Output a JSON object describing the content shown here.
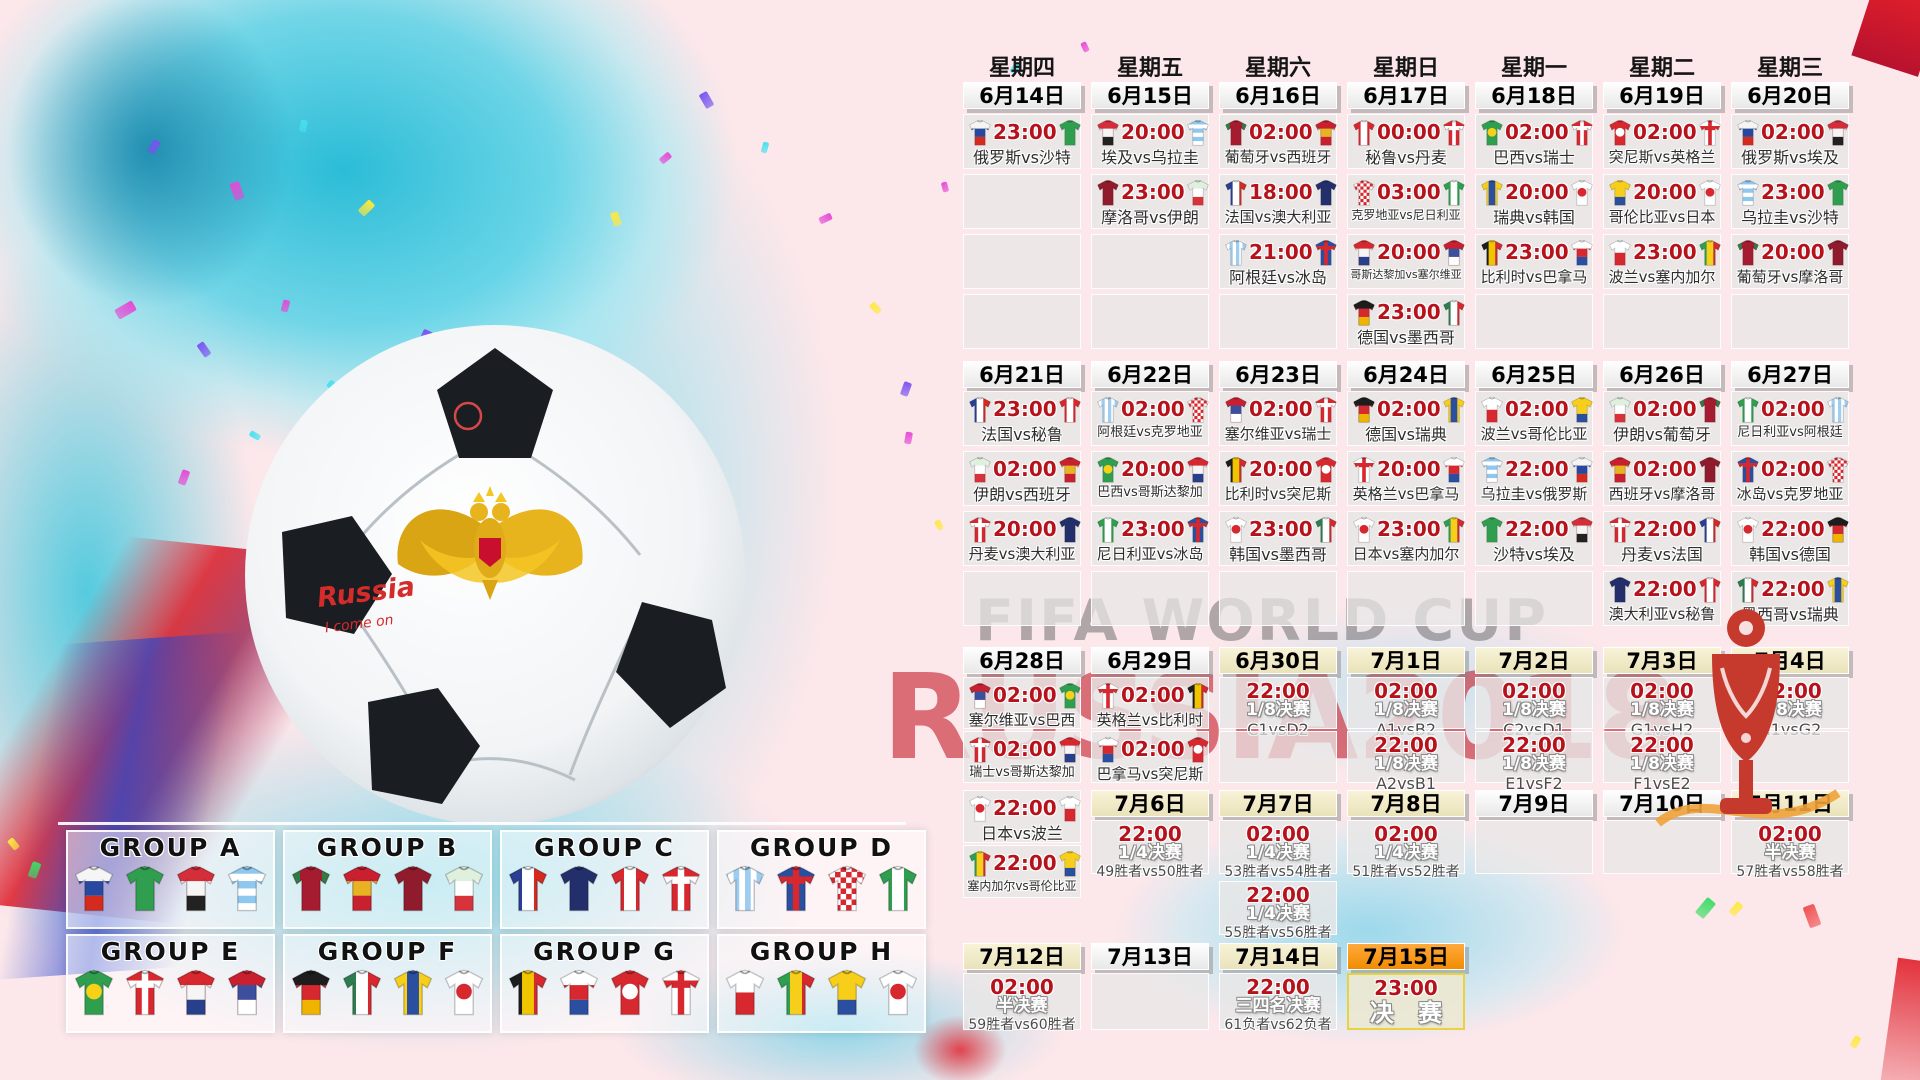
{
  "watermark": {
    "line1": "FIFA WORLD CUP",
    "line2": "RUSSIA2018"
  },
  "ball_text": {
    "line1": "Russia",
    "line2": "I come on"
  },
  "weekdays": [
    "星期四",
    "星期五",
    "星期六",
    "星期日",
    "星期一",
    "星期二",
    "星期三"
  ],
  "colors": {
    "time_red": "#b5121b",
    "date_cream": "#efe8c4",
    "date_orange": "#f18c00",
    "final_border": "#e8d23f",
    "watermark_red": "#c62230",
    "watermark_gray": "#5f5f5f"
  },
  "teams": {
    "russia": {
      "p": "h3",
      "c": [
        "#f5f5f5",
        "#27489e",
        "#d52b1e"
      ]
    },
    "saudi": {
      "p": "plain",
      "c": [
        "#2f9e4f"
      ]
    },
    "egypt": {
      "p": "h3",
      "c": [
        "#d42e3a",
        "#f5f5f5",
        "#222222"
      ]
    },
    "uruguay": {
      "p": "hstripes",
      "c": [
        "#8fc8ee",
        "#ffffff"
      ]
    },
    "morocco": {
      "p": "plain",
      "c": [
        "#8f1b2c"
      ]
    },
    "iran": {
      "p": "h3",
      "c": [
        "#dff0df",
        "#ffffff",
        "#d8323b"
      ]
    },
    "portugal": {
      "p": "sleeves",
      "c": [
        "#a51c30",
        "#2e7d43"
      ]
    },
    "spain": {
      "p": "h3",
      "c": [
        "#c8202f",
        "#e8b322",
        "#c8202f"
      ]
    },
    "france": {
      "p": "v3",
      "c": [
        "#2b3f92",
        "#ffffff",
        "#d52b1e"
      ]
    },
    "australia": {
      "p": "plain",
      "c": [
        "#232f6b"
      ]
    },
    "argentina": {
      "p": "vstripes",
      "c": [
        "#9ecdf0",
        "#ffffff"
      ]
    },
    "iceland": {
      "p": "cross",
      "c": [
        "#2a4fa0",
        "#d7282f"
      ]
    },
    "peru": {
      "p": "v3",
      "c": [
        "#d7282f",
        "#ffffff",
        "#d7282f"
      ]
    },
    "denmark": {
      "p": "cross",
      "c": [
        "#d7282f",
        "#ffffff"
      ]
    },
    "croatia": {
      "p": "check",
      "c": [
        "#d7282f",
        "#ffffff"
      ]
    },
    "nigeria": {
      "p": "v3",
      "c": [
        "#2f9e4f",
        "#ffffff",
        "#2f9e4f"
      ]
    },
    "costarica": {
      "p": "h3",
      "c": [
        "#d7282f",
        "#f5f5f5",
        "#27408b"
      ]
    },
    "serbia": {
      "p": "h3",
      "c": [
        "#c8202f",
        "#3b4f9e",
        "#ffffff"
      ]
    },
    "germany": {
      "p": "h3",
      "c": [
        "#1d1d1d",
        "#d7282f",
        "#f0b400"
      ]
    },
    "mexico": {
      "p": "v3",
      "c": [
        "#2f7d4f",
        "#ffffff",
        "#d7282f"
      ]
    },
    "brazil": {
      "p": "circle",
      "c": [
        "#2f9e4f",
        "#f7d117"
      ]
    },
    "switzerland": {
      "p": "cross",
      "c": [
        "#d7282f",
        "#ffffff"
      ]
    },
    "sweden": {
      "p": "v3",
      "c": [
        "#f7cf1b",
        "#2a4fa0",
        "#f7cf1b"
      ]
    },
    "korea": {
      "p": "circle",
      "c": [
        "#ffffff",
        "#d7282f"
      ]
    },
    "belgium": {
      "p": "v3",
      "c": [
        "#1d1d1d",
        "#f0c500",
        "#d7282f"
      ]
    },
    "panama": {
      "p": "h3",
      "c": [
        "#ffffff",
        "#d7282f",
        "#2a4fa0"
      ]
    },
    "tunisia": {
      "p": "circle",
      "c": [
        "#d7282f",
        "#ffffff"
      ]
    },
    "england": {
      "p": "cross",
      "c": [
        "#ffffff",
        "#d7282f"
      ]
    },
    "colombia": {
      "p": "h3",
      "c": [
        "#f7cf1b",
        "#f7cf1b",
        "#2a4fa0"
      ]
    },
    "japan": {
      "p": "circle",
      "c": [
        "#ffffff",
        "#d7282f"
      ]
    },
    "poland": {
      "p": "h2",
      "c": [
        "#ffffff",
        "#d7282f"
      ]
    },
    "senegal": {
      "p": "v3",
      "c": [
        "#2f9e4f",
        "#f7cf1b",
        "#d7282f"
      ]
    }
  },
  "weeks": [
    {
      "columns": [
        {
          "date": "6月14日",
          "style": "white",
          "cells": [
            {
              "t": "23:00",
              "h": "russia",
              "a": "saudi",
              "n": "俄罗斯vs沙特"
            },
            "E",
            "E",
            "E"
          ]
        },
        {
          "date": "6月15日",
          "style": "white",
          "cells": [
            {
              "t": "20:00",
              "h": "egypt",
              "a": "uruguay",
              "n": "埃及vs乌拉圭"
            },
            {
              "t": "23:00",
              "h": "morocco",
              "a": "iran",
              "n": "摩洛哥vs伊朗"
            },
            "E",
            "E"
          ]
        },
        {
          "date": "6月16日",
          "style": "white",
          "cells": [
            {
              "t": "02:00",
              "h": "portugal",
              "a": "spain",
              "n": "葡萄牙vs西班牙"
            },
            {
              "t": "18:00",
              "h": "france",
              "a": "australia",
              "n": "法国vs澳大利亚"
            },
            {
              "t": "21:00",
              "h": "argentina",
              "a": "iceland",
              "n": "阿根廷vs冰岛"
            },
            "E"
          ]
        },
        {
          "date": "6月17日",
          "style": "white",
          "cells": [
            {
              "t": "00:00",
              "h": "peru",
              "a": "denmark",
              "n": "秘鲁vs丹麦"
            },
            {
              "t": "03:00",
              "h": "croatia",
              "a": "nigeria",
              "n": "克罗地亚vs尼日利亚"
            },
            {
              "t": "20:00",
              "h": "costarica",
              "a": "serbia",
              "n": "哥斯达黎加vs塞尔维亚"
            },
            {
              "t": "23:00",
              "h": "germany",
              "a": "mexico",
              "n": "德国vs墨西哥"
            }
          ]
        },
        {
          "date": "6月18日",
          "style": "white",
          "cells": [
            {
              "t": "02:00",
              "h": "brazil",
              "a": "switzerland",
              "n": "巴西vs瑞士"
            },
            {
              "t": "20:00",
              "h": "sweden",
              "a": "korea",
              "n": "瑞典vs韩国"
            },
            {
              "t": "23:00",
              "h": "belgium",
              "a": "panama",
              "n": "比利时vs巴拿马"
            },
            "E"
          ]
        },
        {
          "date": "6月19日",
          "style": "white",
          "cells": [
            {
              "t": "02:00",
              "h": "tunisia",
              "a": "england",
              "n": "突尼斯vs英格兰"
            },
            {
              "t": "20:00",
              "h": "colombia",
              "a": "japan",
              "n": "哥伦比亚vs日本"
            },
            {
              "t": "23:00",
              "h": "poland",
              "a": "senegal",
              "n": "波兰vs塞内加尔"
            },
            "E"
          ]
        },
        {
          "date": "6月20日",
          "style": "white",
          "cells": [
            {
              "t": "02:00",
              "h": "russia",
              "a": "egypt",
              "n": "俄罗斯vs埃及"
            },
            {
              "t": "23:00",
              "h": "uruguay",
              "a": "saudi",
              "n": "乌拉圭vs沙特"
            },
            {
              "t": "20:00",
              "h": "portugal",
              "a": "morocco",
              "n": "葡萄牙vs摩洛哥"
            },
            "E"
          ]
        }
      ]
    },
    {
      "columns": [
        {
          "date": "6月21日",
          "style": "white",
          "cells": [
            {
              "t": "23:00",
              "h": "france",
              "a": "peru",
              "n": "法国vs秘鲁"
            },
            {
              "t": "02:00",
              "h": "iran",
              "a": "spain",
              "n": "伊朗vs西班牙"
            },
            {
              "t": "20:00",
              "h": "denmark",
              "a": "australia",
              "n": "丹麦vs澳大利亚"
            },
            "E"
          ]
        },
        {
          "date": "6月22日",
          "style": "white",
          "cells": [
            {
              "t": "02:00",
              "h": "argentina",
              "a": "croatia",
              "n": "阿根廷vs克罗地亚"
            },
            {
              "t": "20:00",
              "h": "brazil",
              "a": "costarica",
              "n": "巴西vs哥斯达黎加"
            },
            {
              "t": "23:00",
              "h": "nigeria",
              "a": "iceland",
              "n": "尼日利亚vs冰岛"
            },
            "E"
          ]
        },
        {
          "date": "6月23日",
          "style": "white",
          "cells": [
            {
              "t": "02:00",
              "h": "serbia",
              "a": "switzerland",
              "n": "塞尔维亚vs瑞士"
            },
            {
              "t": "20:00",
              "h": "belgium",
              "a": "tunisia",
              "n": "比利时vs突尼斯"
            },
            {
              "t": "23:00",
              "h": "korea",
              "a": "mexico",
              "n": "韩国vs墨西哥"
            },
            "E"
          ]
        },
        {
          "date": "6月24日",
          "style": "white",
          "cells": [
            {
              "t": "02:00",
              "h": "germany",
              "a": "sweden",
              "n": "德国vs瑞典"
            },
            {
              "t": "20:00",
              "h": "england",
              "a": "panama",
              "n": "英格兰vs巴拿马"
            },
            {
              "t": "23:00",
              "h": "japan",
              "a": "senegal",
              "n": "日本vs塞内加尔"
            },
            "E"
          ]
        },
        {
          "date": "6月25日",
          "style": "white",
          "cells": [
            {
              "t": "02:00",
              "h": "poland",
              "a": "colombia",
              "n": "波兰vs哥伦比亚"
            },
            {
              "t": "22:00",
              "h": "uruguay",
              "a": "russia",
              "n": "乌拉圭vs俄罗斯"
            },
            {
              "t": "22:00",
              "h": "saudi",
              "a": "egypt",
              "n": "沙特vs埃及"
            },
            "E"
          ]
        },
        {
          "date": "6月26日",
          "style": "white",
          "cells": [
            {
              "t": "02:00",
              "h": "iran",
              "a": "portugal",
              "n": "伊朗vs葡萄牙"
            },
            {
              "t": "02:00",
              "h": "spain",
              "a": "morocco",
              "n": "西班牙vs摩洛哥"
            },
            {
              "t": "22:00",
              "h": "denmark",
              "a": "france",
              "n": "丹麦vs法国"
            },
            {
              "t": "22:00",
              "h": "australia",
              "a": "peru",
              "n": "澳大利亚vs秘鲁"
            }
          ]
        },
        {
          "date": "6月27日",
          "style": "white",
          "cells": [
            {
              "t": "02:00",
              "h": "nigeria",
              "a": "argentina",
              "n": "尼日利亚vs阿根廷"
            },
            {
              "t": "02:00",
              "h": "iceland",
              "a": "croatia",
              "n": "冰岛vs克罗地亚"
            },
            {
              "t": "22:00",
              "h": "korea",
              "a": "germany",
              "n": "韩国vs德国"
            },
            {
              "t": "22:00",
              "h": "mexico",
              "a": "sweden",
              "n": "墨西哥vs瑞典"
            }
          ]
        }
      ]
    },
    {
      "columns": [
        {
          "date": "6月28日",
          "style": "white",
          "cells": [
            {
              "t": "02:00",
              "h": "serbia",
              "a": "brazil",
              "n": "塞尔维亚vs巴西"
            },
            {
              "t": "02:00",
              "h": "switzerland",
              "a": "costarica",
              "n": "瑞士vs哥斯达黎加"
            }
          ]
        },
        {
          "date": "6月29日",
          "style": "white",
          "cells": [
            {
              "t": "02:00",
              "h": "england",
              "a": "belgium",
              "n": "英格兰vs比利时"
            },
            {
              "t": "02:00",
              "h": "panama",
              "a": "tunisia",
              "n": "巴拿马vs突尼斯"
            }
          ]
        },
        {
          "date": "6月30日",
          "style": "cream",
          "cells": [
            {
              "t": "22:00",
              "r": "1/8决赛",
              "c": "C1vsD2"
            },
            "E"
          ]
        },
        {
          "date": "7月1日",
          "style": "cream",
          "cells": [
            {
              "t": "02:00",
              "r": "1/8决赛",
              "c": "A1vsB2"
            },
            {
              "t": "22:00",
              "r": "1/8决赛",
              "c": "A2vsB1"
            }
          ]
        },
        {
          "date": "7月2日",
          "style": "cream",
          "cells": [
            {
              "t": "02:00",
              "r": "1/8决赛",
              "c": "C2vsD1"
            },
            {
              "t": "22:00",
              "r": "1/8决赛",
              "c": "E1vsF2"
            }
          ]
        },
        {
          "date": "7月3日",
          "style": "cream",
          "cells": [
            {
              "t": "02:00",
              "r": "1/8决赛",
              "c": "G1vsH2"
            },
            {
              "t": "22:00",
              "r": "1/8决赛",
              "c": "F1vsE2"
            }
          ]
        },
        {
          "date": "7月4日",
          "style": "cream",
          "cells": [
            {
              "t": "02:00",
              "r": "1/8决赛",
              "c": "H1vsG2"
            },
            "E"
          ]
        }
      ]
    },
    {
      "columns": [
        {
          "date": null,
          "offset": true,
          "cells": [
            {
              "t": "22:00",
              "h": "japan",
              "a": "poland",
              "n": "日本vs波兰"
            },
            {
              "t": "22:00",
              "h": "senegal",
              "a": "colombia",
              "n": "塞内加尔vs哥伦比亚"
            }
          ]
        },
        {
          "date": "7月6日",
          "style": "cream",
          "cells": [
            {
              "t": "22:00",
              "r": "1/4决赛",
              "c": "49胜者vs50胜者"
            }
          ]
        },
        {
          "date": "7月7日",
          "style": "cream",
          "cells": [
            {
              "t": "02:00",
              "r": "1/4决赛",
              "c": "53胜者vs54胜者"
            },
            {
              "t": "22:00",
              "r": "1/4决赛",
              "c": "55胜者vs56胜者"
            }
          ]
        },
        {
          "date": "7月8日",
          "style": "cream",
          "cells": [
            {
              "t": "02:00",
              "r": "1/4决赛",
              "c": "51胜者vs52胜者"
            }
          ]
        },
        {
          "date": "7月9日",
          "style": "white",
          "cells": [
            "E"
          ]
        },
        {
          "date": "7月10日",
          "style": "white",
          "cells": [
            "E"
          ]
        },
        {
          "date": "7月11日",
          "style": "cream",
          "cells": [
            {
              "t": "02:00",
              "r": "半决赛",
              "c": "57胜者vs58胜者"
            }
          ]
        }
      ]
    },
    {
      "columns": [
        {
          "date": "7月12日",
          "style": "cream",
          "cells": [
            {
              "t": "02:00",
              "r": "半决赛",
              "c": "59胜者vs60胜者"
            }
          ]
        },
        {
          "date": "7月13日",
          "style": "white",
          "cells": [
            "E"
          ]
        },
        {
          "date": "7月14日",
          "style": "cream",
          "cells": [
            {
              "t": "22:00",
              "r": "三四名决赛",
              "c": "61负者vs62负者"
            }
          ]
        },
        {
          "date": "7月15日",
          "style": "orange",
          "cells": [
            {
              "t": "23:00",
              "r": "决 赛",
              "final": true
            }
          ]
        }
      ]
    }
  ],
  "groups": [
    {
      "label": "GROUP A",
      "teams": [
        "russia",
        "saudi",
        "egypt",
        "uruguay"
      ]
    },
    {
      "label": "GROUP B",
      "teams": [
        "portugal",
        "spain",
        "morocco",
        "iran"
      ]
    },
    {
      "label": "GROUP C",
      "teams": [
        "france",
        "australia",
        "peru",
        "denmark"
      ]
    },
    {
      "label": "GROUP D",
      "teams": [
        "argentina",
        "iceland",
        "croatia",
        "nigeria"
      ]
    },
    {
      "label": "GROUP E",
      "teams": [
        "brazil",
        "switzerland",
        "costarica",
        "serbia"
      ]
    },
    {
      "label": "GROUP F",
      "teams": [
        "germany",
        "mexico",
        "sweden",
        "korea"
      ]
    },
    {
      "label": "GROUP G",
      "teams": [
        "belgium",
        "panama",
        "tunisia",
        "england"
      ]
    },
    {
      "label": "GROUP H",
      "teams": [
        "poland",
        "senegal",
        "colombia",
        "japan"
      ]
    }
  ]
}
